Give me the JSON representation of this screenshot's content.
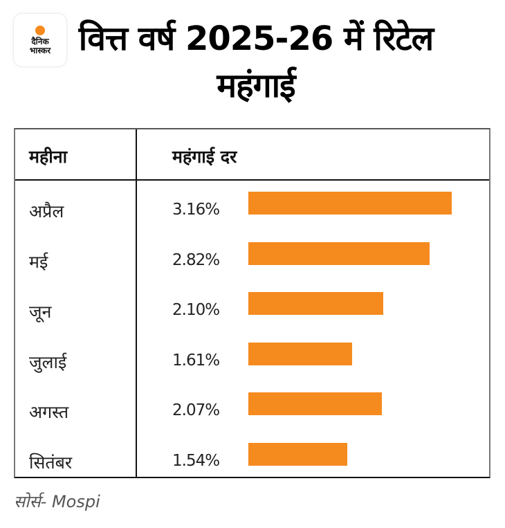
{
  "brand": {
    "logo_line1": "दैनिक",
    "logo_line2": "भास्कर",
    "accent_color": "#F58A1F"
  },
  "title": "वित्त वर्ष 2025-26 में रिटेल महंगाई",
  "table": {
    "headers": [
      "महीना",
      "महंगाई दर"
    ]
  },
  "source": "सोर्स- Mospi",
  "chart_data": {
    "type": "bar",
    "orientation": "horizontal",
    "title": "वित्त वर्ष 2025-26 में रिटेल महंगाई",
    "xlabel": "महंगाई दर",
    "ylabel": "महीना",
    "categories": [
      "अप्रैल",
      "मई",
      "जून",
      "जुलाई",
      "अगस्त",
      "सितंबर"
    ],
    "values": [
      3.16,
      2.82,
      2.1,
      1.61,
      2.07,
      1.54
    ],
    "labels": [
      "3.16%",
      "2.82%",
      "2.10%",
      "1.61%",
      "2.07%",
      "1.54%"
    ],
    "unit": "%",
    "xlim": [
      0,
      3.16
    ],
    "grid": false,
    "bar_color": "#F58A1F",
    "source": "सोर्स- Mospi"
  }
}
